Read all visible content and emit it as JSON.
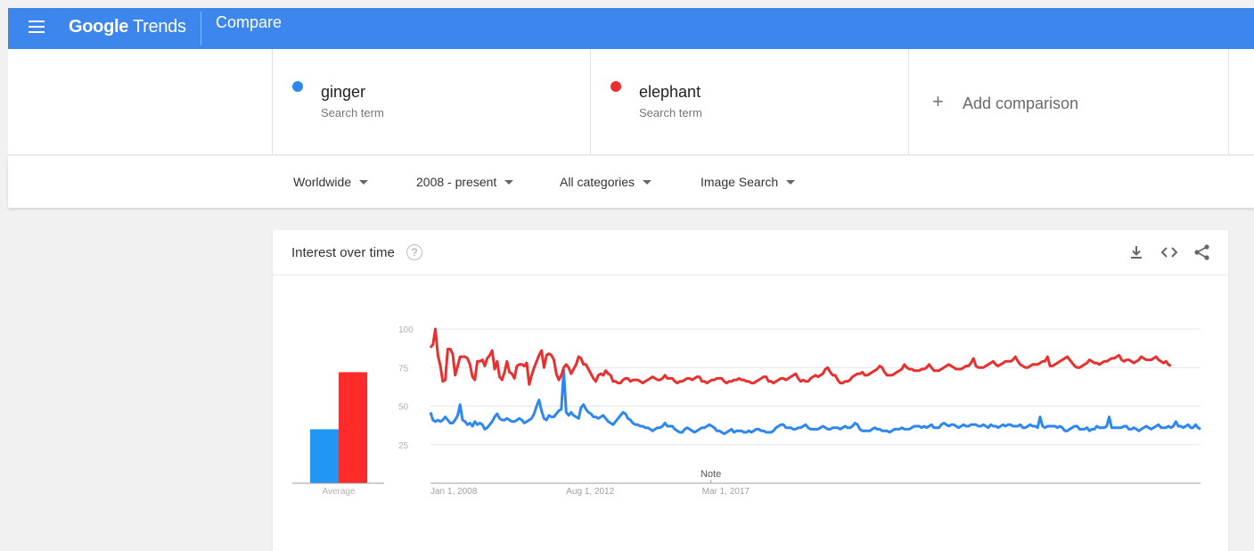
{
  "header": {
    "brand_bold": "Google",
    "brand_light": "Trends",
    "page_title": "Compare"
  },
  "terms": [
    {
      "name": "ginger",
      "sub": "Search term",
      "color": "#2d87f0"
    },
    {
      "name": "elephant",
      "sub": "Search term",
      "color": "#e8302f"
    }
  ],
  "add_comparison": {
    "label": "Add comparison"
  },
  "filters": {
    "region": "Worldwide",
    "time": "2008 - present",
    "category": "All categories",
    "property": "Image Search"
  },
  "card": {
    "title": "Interest over time",
    "help_glyph": "?",
    "icons": [
      "download-icon",
      "embed-icon",
      "share-icon"
    ]
  },
  "chart_data": {
    "type": "line",
    "title": "Interest over time",
    "y_ticks": [
      "100",
      "75",
      "50",
      "25"
    ],
    "ylim": [
      0,
      100
    ],
    "x_tick_labels": [
      "Jan 1, 2008",
      "Aug 1, 2012",
      "Mar 1, 2017"
    ],
    "x_tick_index": [
      0,
      55,
      110
    ],
    "note_label": "Note",
    "note_index": 110,
    "grid": true,
    "average": {
      "label": "Average",
      "values": [
        35,
        72
      ]
    },
    "series": [
      {
        "color": "#2d87f0",
        "values": [
          46,
          41,
          40,
          41,
          40,
          41,
          43,
          41,
          39,
          39,
          41,
          44,
          51,
          41,
          40,
          38,
          39,
          37,
          40,
          38,
          39,
          38,
          35,
          36,
          38,
          40,
          43,
          45,
          42,
          41,
          41,
          42,
          41,
          40,
          40,
          41,
          42,
          41,
          39,
          40,
          41,
          42,
          45,
          50,
          54,
          47,
          42,
          41,
          44,
          43,
          43,
          45,
          47,
          48,
          73,
          46,
          44,
          46,
          44,
          43,
          42,
          49,
          51,
          48,
          46,
          45,
          43,
          43,
          42,
          43,
          44,
          42,
          40,
          39,
          38,
          40,
          42,
          44,
          46,
          45,
          42,
          41,
          39,
          38,
          38,
          37,
          37,
          36,
          36,
          35,
          34,
          35,
          36,
          36,
          37,
          39,
          37,
          37,
          37,
          35,
          34,
          33,
          33,
          35,
          36,
          35,
          34,
          33,
          34,
          35,
          36,
          36,
          37,
          38,
          37,
          36,
          34,
          34,
          33,
          32,
          33,
          34,
          35,
          33,
          34,
          34,
          34,
          33,
          33,
          34,
          33,
          34,
          35,
          35,
          34,
          34,
          33,
          33,
          33,
          34,
          36,
          37,
          38,
          38,
          36,
          36,
          36,
          35,
          35,
          36,
          36,
          37,
          38,
          36,
          35,
          35,
          35,
          35,
          36,
          37,
          36,
          35,
          35,
          36,
          36,
          36,
          35,
          36,
          37,
          36,
          36,
          37,
          39,
          38,
          35,
          34,
          34,
          34,
          34,
          35,
          36,
          35,
          35,
          34,
          34,
          34,
          33,
          34,
          35,
          35,
          35,
          36,
          35,
          35,
          35,
          36,
          37,
          37,
          37,
          36,
          37,
          36,
          37,
          38,
          36,
          36,
          36,
          38,
          39,
          38,
          37,
          38,
          38,
          37,
          36,
          37,
          38,
          37,
          37,
          38,
          38,
          38,
          37,
          37,
          38,
          37,
          36,
          38,
          37,
          37,
          36,
          37,
          38,
          37,
          38,
          38,
          37,
          37,
          37,
          38,
          36,
          36,
          37,
          38,
          37,
          37,
          36,
          43,
          37,
          36,
          37,
          37,
          37,
          37,
          36,
          37,
          36,
          34,
          34,
          35,
          36,
          37,
          37,
          35,
          35,
          35,
          36,
          34,
          35,
          35,
          37,
          36,
          36,
          36,
          37,
          43,
          36,
          36,
          36,
          36,
          36,
          37,
          37,
          35,
          35,
          36,
          35,
          34,
          35,
          36,
          37,
          36,
          35,
          36,
          37,
          38,
          36,
          36,
          36,
          37,
          36,
          37,
          40,
          37,
          37,
          36,
          37,
          38,
          36,
          36,
          38,
          36,
          35
        ]
      },
      {
        "color": "#e8302f",
        "values": [
          88,
          90,
          100,
          83,
          76,
          66,
          67,
          87,
          87,
          84,
          70,
          76,
          82,
          82,
          82,
          81,
          77,
          69,
          67,
          79,
          79,
          80,
          76,
          81,
          83,
          86,
          74,
          79,
          69,
          67,
          72,
          79,
          72,
          71,
          68,
          76,
          77,
          77,
          76,
          78,
          64,
          70,
          75,
          79,
          83,
          86,
          75,
          83,
          84,
          83,
          80,
          71,
          67,
          70,
          75,
          77,
          75,
          71,
          74,
          77,
          82,
          81,
          77,
          77,
          74,
          71,
          68,
          66,
          70,
          71,
          70,
          73,
          71,
          70,
          66,
          66,
          65,
          65,
          67,
          68,
          68,
          66,
          67,
          67,
          67,
          66,
          65,
          66,
          67,
          68,
          69,
          68,
          67,
          67,
          68,
          70,
          68,
          68,
          68,
          66,
          65,
          66,
          66,
          67,
          68,
          68,
          67,
          68,
          69,
          69,
          66,
          66,
          65,
          66,
          67,
          67,
          68,
          68,
          68,
          66,
          65,
          66,
          66,
          67,
          67,
          68,
          67,
          67,
          66,
          66,
          65,
          65,
          66,
          67,
          68,
          69,
          69,
          66,
          66,
          65,
          66,
          67,
          68,
          68,
          67,
          68,
          69,
          70,
          71,
          68,
          66,
          67,
          66,
          66,
          68,
          69,
          70,
          69,
          70,
          71,
          74,
          75,
          72,
          70,
          70,
          67,
          65,
          65,
          66,
          66,
          67,
          69,
          70,
          71,
          71,
          72,
          70,
          70,
          71,
          72,
          73,
          74,
          76,
          75,
          72,
          70,
          70,
          70,
          71,
          72,
          73,
          74,
          77,
          75,
          74,
          74,
          73,
          73,
          73,
          74,
          74,
          75,
          77,
          75,
          73,
          73,
          73,
          74,
          75,
          76,
          77,
          76,
          75,
          74,
          74,
          74,
          75,
          76,
          76,
          78,
          81,
          76,
          75,
          75,
          75,
          76,
          77,
          78,
          79,
          77,
          76,
          77,
          78,
          79,
          79,
          79,
          80,
          82,
          79,
          77,
          76,
          75,
          75,
          76,
          77,
          77,
          77,
          78,
          79,
          79,
          82,
          76,
          76,
          77,
          78,
          79,
          80,
          81,
          82,
          80,
          78,
          76,
          75,
          75,
          76,
          77,
          78,
          80,
          79,
          78,
          78,
          77,
          78,
          79,
          79,
          80,
          81,
          81,
          82,
          83,
          80,
          79,
          80,
          80,
          79,
          78,
          79,
          80,
          82,
          81,
          80,
          80,
          80,
          81,
          82,
          80,
          79,
          78,
          79,
          77,
          76
        ]
      }
    ]
  }
}
